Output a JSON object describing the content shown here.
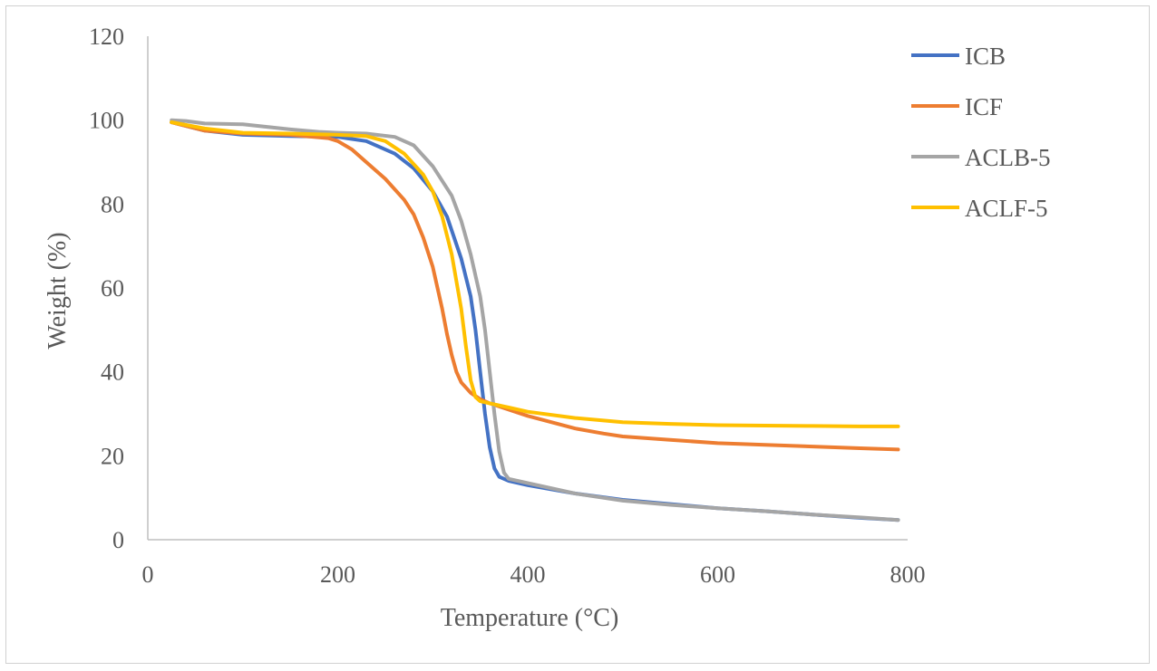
{
  "chart_data": {
    "type": "line",
    "title": "",
    "xlabel": "Temperature (°C)",
    "ylabel": "Weight (%)",
    "xlim": [
      0,
      800
    ],
    "ylim": [
      0,
      120
    ],
    "xticks": [
      "0",
      "200",
      "400",
      "600",
      "800"
    ],
    "yticks": [
      "0",
      "20",
      "40",
      "60",
      "80",
      "100",
      "120"
    ],
    "grid": false,
    "legend_position": "right",
    "series": [
      {
        "name": "ICB",
        "color": "#4472C4",
        "x": [
          25,
          60,
          100,
          150,
          200,
          230,
          260,
          280,
          300,
          315,
          330,
          340,
          345,
          350,
          355,
          360,
          365,
          370,
          375,
          380,
          400,
          450,
          500,
          550,
          600,
          650,
          700,
          750,
          790
        ],
        "y": [
          99.5,
          97.5,
          96.5,
          96.2,
          96,
          95,
          92,
          88.5,
          83,
          77,
          67,
          58,
          50,
          40,
          30,
          22,
          17,
          15,
          14.5,
          14,
          13,
          11,
          9.5,
          8.5,
          7.5,
          6.8,
          6,
          5.2,
          4.7
        ]
      },
      {
        "name": "ICF",
        "color": "#ED7D31",
        "x": [
          25,
          60,
          100,
          150,
          190,
          200,
          215,
          230,
          250,
          270,
          280,
          290,
          300,
          310,
          315,
          320,
          325,
          330,
          340,
          350,
          360,
          380,
          400,
          450,
          480,
          500,
          550,
          600,
          650,
          700,
          750,
          790
        ],
        "y": [
          99.5,
          97.5,
          96.8,
          96.5,
          95.7,
          95,
          93,
          90,
          86,
          81,
          77.5,
          72,
          65,
          55,
          49,
          44,
          40,
          37.5,
          35,
          33.5,
          32.5,
          31,
          29.5,
          26.5,
          25.3,
          24.6,
          23.8,
          23,
          22.6,
          22.2,
          21.8,
          21.5
        ]
      },
      {
        "name": "ACLB-5",
        "color": "#A5A5A5",
        "x": [
          25,
          40,
          60,
          100,
          150,
          180,
          200,
          230,
          260,
          280,
          300,
          320,
          330,
          340,
          350,
          355,
          360,
          365,
          370,
          375,
          380,
          400,
          450,
          500,
          550,
          600,
          650,
          700,
          750,
          790
        ],
        "y": [
          100,
          99.8,
          99.2,
          99,
          97.8,
          97.2,
          97,
          96.8,
          96,
          94,
          89,
          82,
          76,
          68,
          58,
          50,
          40,
          30,
          21,
          16,
          14.5,
          13.5,
          11,
          9.3,
          8.3,
          7.5,
          6.8,
          6,
          5.3,
          4.7
        ]
      },
      {
        "name": "ACLF-5",
        "color": "#FFC000",
        "x": [
          25,
          60,
          100,
          150,
          200,
          230,
          250,
          270,
          290,
          300,
          310,
          320,
          330,
          335,
          340,
          345,
          350,
          360,
          380,
          400,
          450,
          500,
          550,
          600,
          650,
          700,
          750,
          790
        ],
        "y": [
          99.5,
          98,
          97,
          96.8,
          96.5,
          96.2,
          95,
          92,
          87,
          83,
          77,
          68,
          55,
          46,
          38,
          34,
          33,
          32.5,
          31.5,
          30.5,
          29,
          28,
          27.6,
          27.3,
          27.2,
          27.1,
          27,
          27
        ]
      }
    ]
  }
}
